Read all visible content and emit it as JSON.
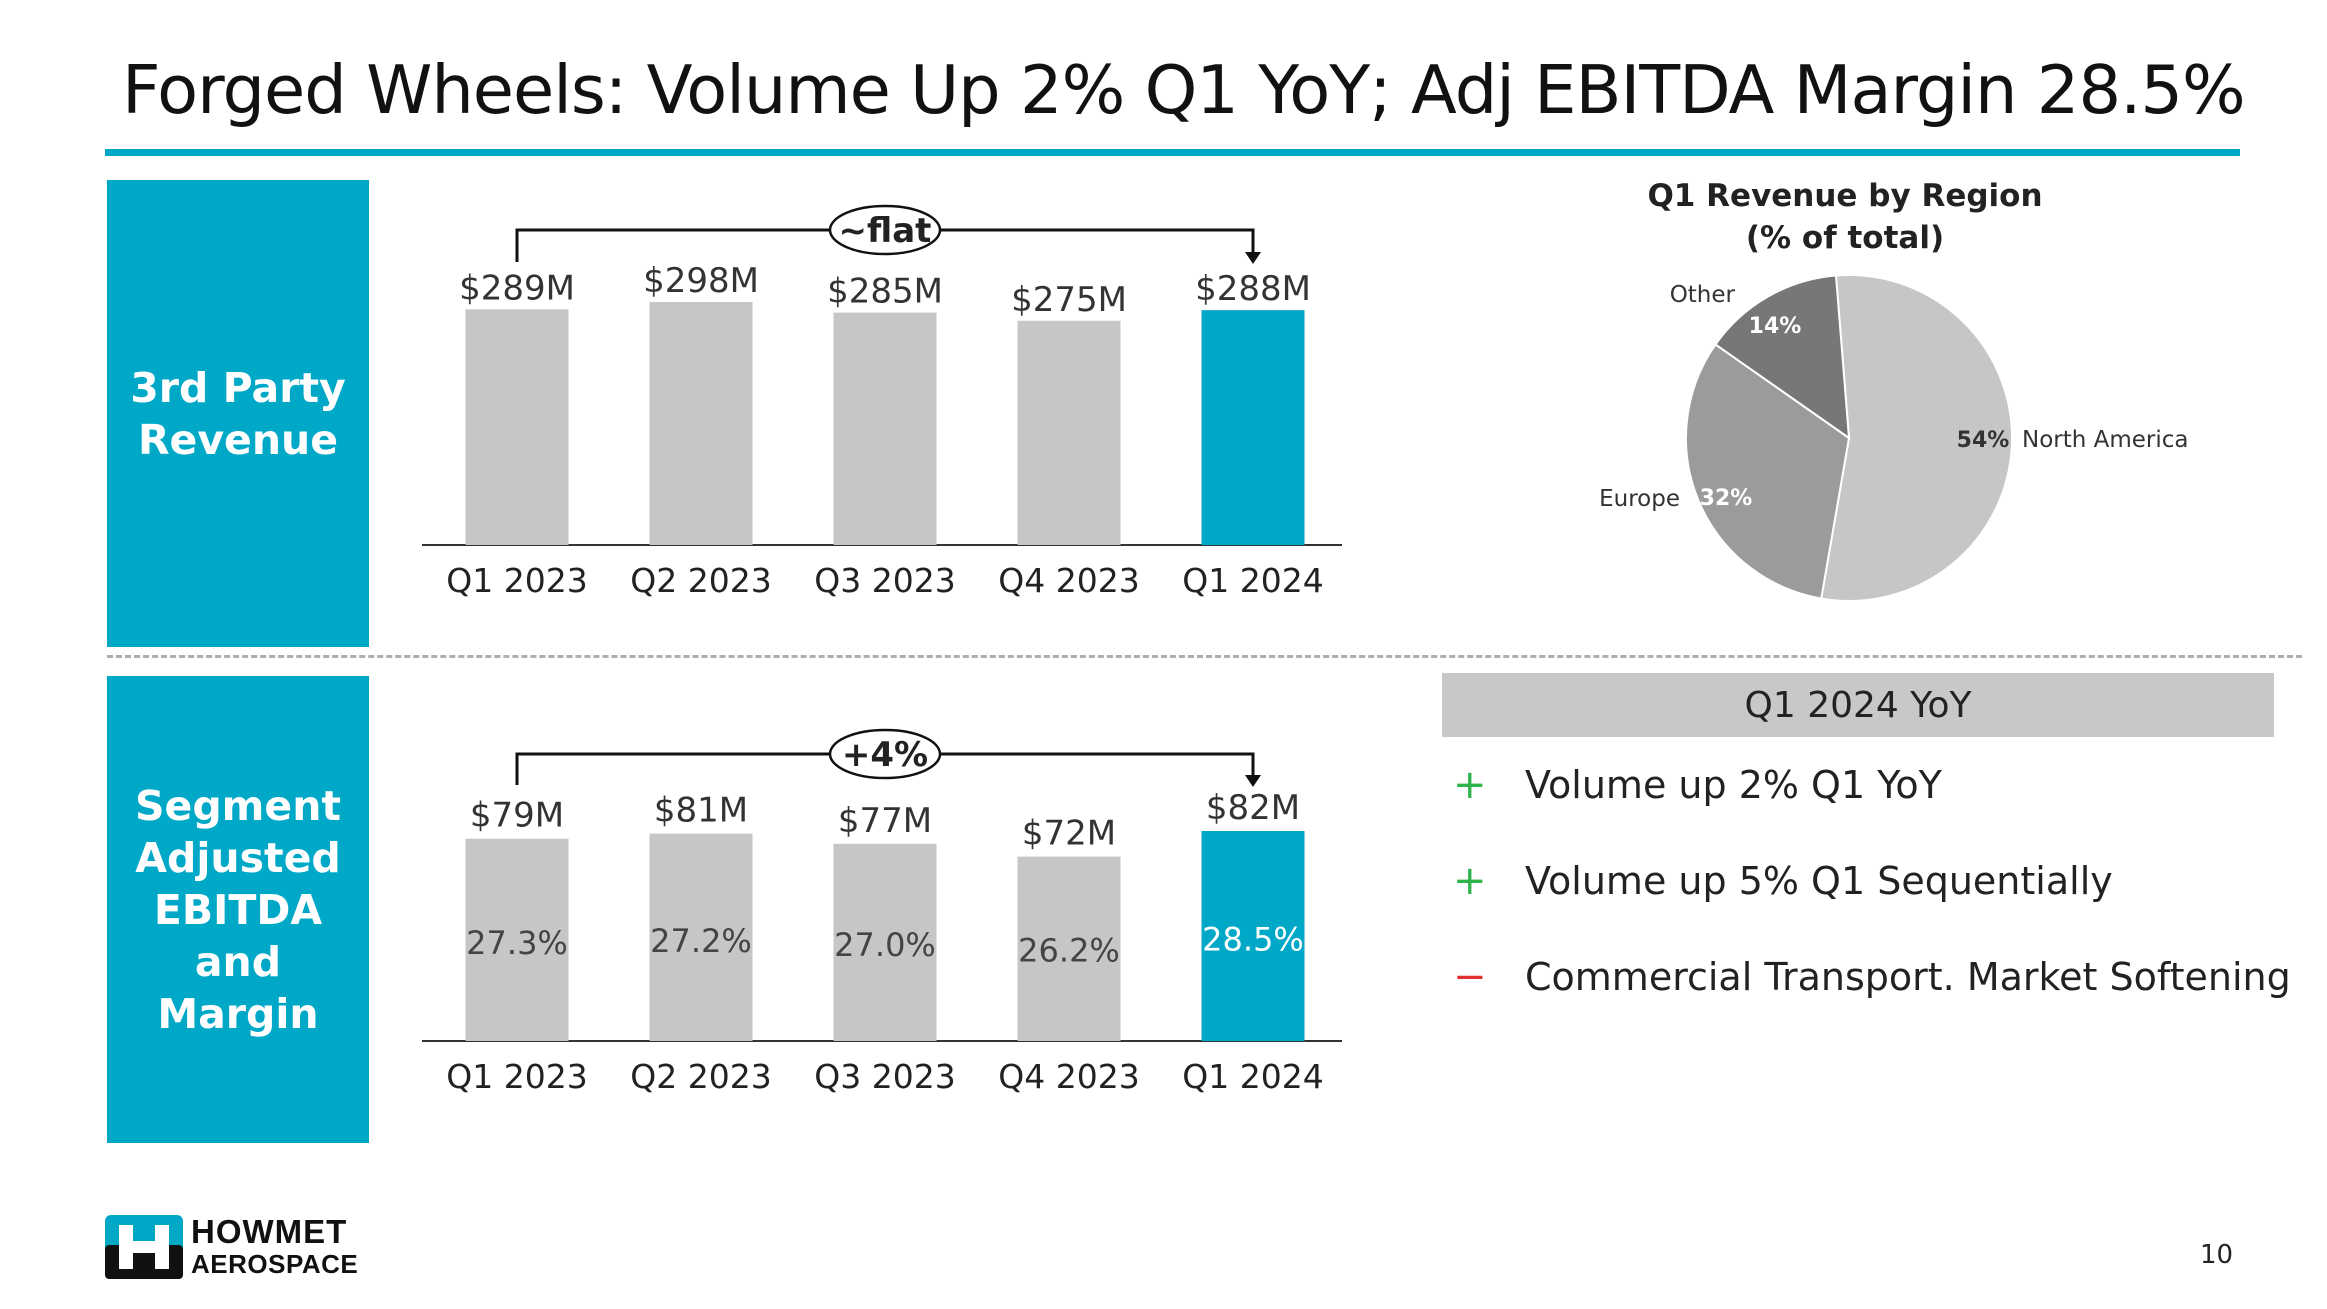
{
  "title": "Forged Wheels: Volume Up 2% Q1 YoY; Adj EBITDA Margin 28.5%",
  "sections": {
    "revenue_label": "3rd Party\nRevenue",
    "ebitda_label": "Segment\nAdjusted\nEBITDA\nand\nMargin"
  },
  "colors": {
    "accent": "#00a8c8",
    "bar_gray": "#c6c6c6",
    "plus": "#2db34a",
    "minus": "#e03030"
  },
  "chart_data": [
    {
      "type": "bar",
      "categories": [
        "Q1 2023",
        "Q2 2023",
        "Q3 2023",
        "Q4 2023",
        "Q1 2024"
      ],
      "values": [
        289,
        298,
        285,
        275,
        288
      ],
      "value_labels": [
        "$289M",
        "$298M",
        "$285M",
        "$275M",
        "$288M"
      ],
      "highlight_index": 4,
      "annotation": "~flat",
      "ylim": [
        0,
        298
      ]
    },
    {
      "type": "bar",
      "categories": [
        "Q1 2023",
        "Q2 2023",
        "Q3 2023",
        "Q4 2023",
        "Q1 2024"
      ],
      "values": [
        79,
        81,
        77,
        72,
        82
      ],
      "value_labels": [
        "$79M",
        "$81M",
        "$77M",
        "$72M",
        "$82M"
      ],
      "margin_labels": [
        "27.3%",
        "27.2%",
        "27.0%",
        "26.2%",
        "28.5%"
      ],
      "highlight_index": 4,
      "annotation": "+4%",
      "ylim": [
        0,
        82
      ]
    },
    {
      "type": "pie",
      "title": "Q1 Revenue by Region\n(% of total)",
      "slices": [
        {
          "label": "North America",
          "value": 54,
          "value_label": "54%",
          "color": "#c6c6c6"
        },
        {
          "label": "Europe",
          "value": 32,
          "value_label": "32%",
          "color": "#9b9b9b"
        },
        {
          "label": "Other",
          "value": 14,
          "value_label": "14%",
          "color": "#777777"
        }
      ]
    }
  ],
  "yoy": {
    "header": "Q1 2024 YoY",
    "items": [
      {
        "sign": "+",
        "text": "Volume up 2% Q1 YoY"
      },
      {
        "sign": "+",
        "text": "Volume up 5% Q1 Sequentially"
      },
      {
        "sign": "−",
        "text": "Commercial Transport. Market Softening"
      }
    ]
  },
  "logo": {
    "line1": "HOWMET",
    "line2": "AEROSPACE"
  },
  "page_number": "10"
}
